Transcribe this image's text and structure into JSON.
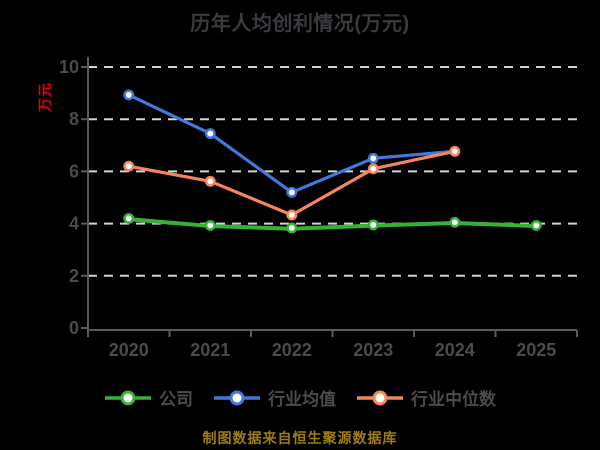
{
  "chart_data": {
    "type": "line",
    "title": "历年人均创利情况(万元)",
    "ylabel": "万元",
    "categories": [
      "2020",
      "2021",
      "2022",
      "2023",
      "2024",
      "2025"
    ],
    "ylim": [
      0,
      10
    ],
    "yticks": [
      0,
      2,
      4,
      6,
      8,
      10
    ],
    "grid": "horizontal-dashed",
    "legend_position": "bottom",
    "series": [
      {
        "key": "company",
        "name": "公司",
        "color": "#35b335",
        "values": [
          4.2,
          3.93,
          3.83,
          3.95,
          4.05,
          3.93
        ]
      },
      {
        "key": "industry-mean",
        "name": "行业均值",
        "color": "#4377dc",
        "values": [
          8.93,
          7.45,
          5.2,
          6.5,
          6.77,
          null
        ]
      },
      {
        "key": "industry-median",
        "name": "行业中位数",
        "color": "#f5855c",
        "values": [
          6.2,
          5.62,
          4.33,
          6.1,
          6.77,
          null
        ]
      }
    ]
  },
  "footer_note": "制图数据来自恒生聚源数据库",
  "colors": {
    "background": "#000000",
    "title_text": "#3a3a3f",
    "tick_text": "#4a4a4f",
    "legend_text": "#4a4a4f",
    "axis_line": "#5a5a5e",
    "gridline": "#d4d4d4",
    "ylabel_text": "#e60000",
    "footer_text": "#9c7d12",
    "marker_fill": "#ffffff"
  }
}
